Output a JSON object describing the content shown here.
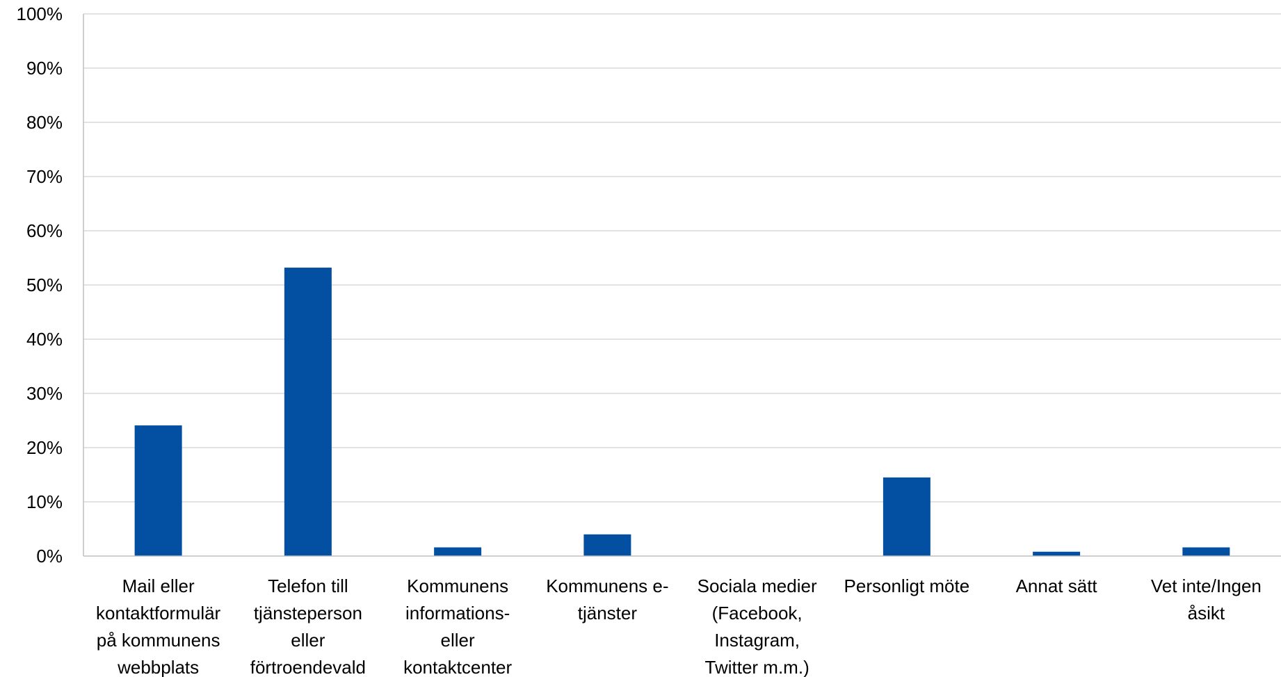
{
  "chart_data": {
    "type": "bar",
    "title": "",
    "xlabel": "",
    "ylabel": "",
    "ylim": [
      0,
      100
    ],
    "yticks": [
      "0%",
      "10%",
      "20%",
      "30%",
      "40%",
      "50%",
      "60%",
      "70%",
      "80%",
      "90%",
      "100%"
    ],
    "grid": true,
    "categories": [
      [
        "Mail eller",
        "kontaktformulär",
        "på kommunens",
        "webbplats"
      ],
      [
        "Telefon till",
        "tjänsteperson",
        "eller",
        "förtroendevald"
      ],
      [
        "Kommunens",
        "informations-",
        "eller",
        "kontaktcenter"
      ],
      [
        "Kommunens e-",
        "tjänster"
      ],
      [
        "Sociala medier",
        "(Facebook,",
        "Instagram,",
        "Twitter m.m.)"
      ],
      [
        "Personligt möte"
      ],
      [
        "Annat sätt"
      ],
      [
        "Vet inte/Ingen",
        "åsikt"
      ]
    ],
    "values": [
      24.1,
      53.2,
      1.6,
      4.0,
      0.0,
      14.5,
      0.8,
      1.6
    ],
    "colors": {
      "bar": "#0350A2",
      "grid": "#D9D9D9",
      "axis": "#BFBFBF"
    }
  }
}
